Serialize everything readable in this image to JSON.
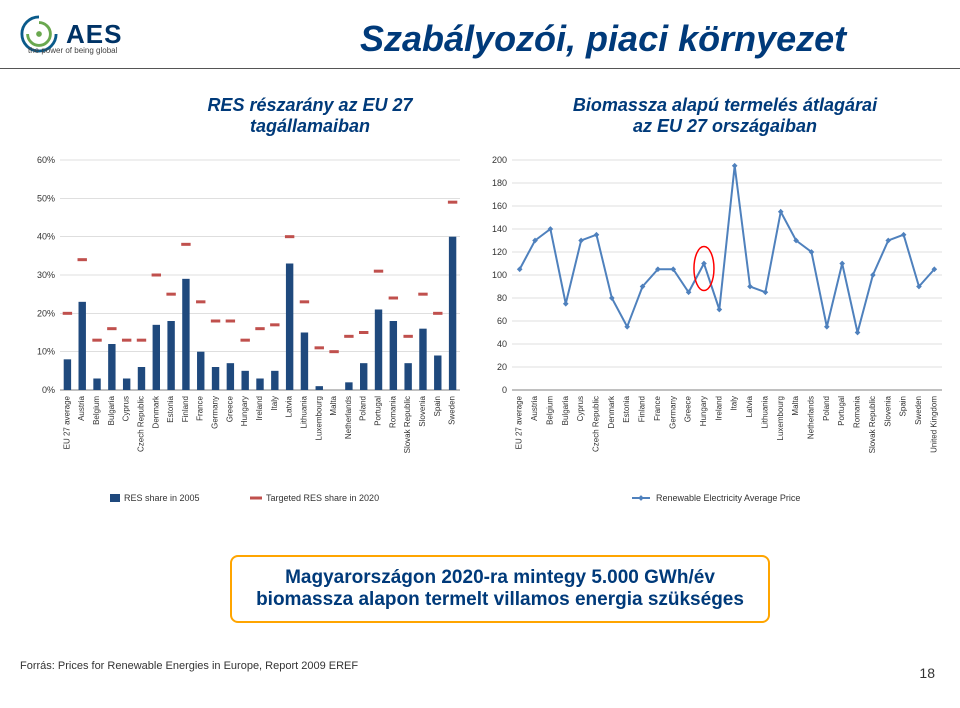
{
  "page": {
    "title": "Szabályozói, piaci környezet",
    "subtitle_left": "RES részarány az EU 27 tagállamaiban",
    "subtitle_right": "Biomassza alapú termelés átlagárai az EU 27 országaiban",
    "bottom_text": "Magyarországon 2020-ra mintegy 5.000 GWh/év biomassza alapon termelt villamos energia szükséges",
    "source": "Forrás: Prices for Renewable Energies in Europe, Report 2009  EREF",
    "page_num": "18",
    "logo_text": "AES",
    "logo_tagline": "the power of being global"
  },
  "chart_left": {
    "type": "bar",
    "categories": [
      "EU 27 average",
      "Austria",
      "Belgium",
      "Bulgaria",
      "Cyprus",
      "Czech Republic",
      "Denmark",
      "Estonia",
      "Finland",
      "France",
      "Germany",
      "Greece",
      "Hungary",
      "Ireland",
      "Italy",
      "Latvia",
      "Lithuania",
      "Luxembourg",
      "Malta",
      "Netherlands",
      "Poland",
      "Portugal",
      "Romania",
      "Slovak Republic",
      "Slovenia",
      "Spain",
      "Sweden"
    ],
    "series": [
      {
        "name": "RES share in 2005",
        "color": "#1f497d",
        "values": [
          8,
          23,
          3,
          12,
          3,
          6,
          17,
          18,
          29,
          10,
          6,
          7,
          5,
          3,
          5,
          33,
          15,
          1,
          0,
          2,
          7,
          21,
          18,
          7,
          16,
          9,
          40
        ]
      },
      {
        "name": "Targeted RES share in 2020",
        "color": "#c0504d",
        "values": [
          20,
          34,
          13,
          16,
          13,
          13,
          30,
          25,
          38,
          23,
          18,
          18,
          13,
          16,
          17,
          40,
          23,
          11,
          10,
          14,
          15,
          31,
          24,
          14,
          25,
          20,
          49
        ]
      }
    ],
    "yaxis": {
      "min": 0,
      "max": 60,
      "step": 10,
      "suffix": "%"
    },
    "label_fontsize": 8,
    "axis_fontsize": 9,
    "legend_fontsize": 9,
    "grid_color": "#bfbfbf",
    "axis_color": "#808080",
    "target_marker": "dash"
  },
  "chart_right": {
    "type": "line",
    "categories": [
      "EU 27 average",
      "Austria",
      "Belgium",
      "Bulgaria",
      "Cyprus",
      "Czech Republic",
      "Denmark",
      "Estonia",
      "Finland",
      "France",
      "Germany",
      "Greece",
      "Hungary",
      "Ireland",
      "Italy",
      "Latvia",
      "Lithuania",
      "Luxembourg",
      "Malta",
      "Netherlands",
      "Poland",
      "Portugal",
      "Romania",
      "Slovak Republic",
      "Slovenia",
      "Spain",
      "Sweden",
      "United Kingdom"
    ],
    "series": [
      {
        "name": "Renewable Electricity Average Price",
        "color": "#4f81bd",
        "values": [
          105,
          130,
          140,
          75,
          130,
          135,
          80,
          55,
          90,
          105,
          105,
          85,
          110,
          70,
          195,
          90,
          85,
          155,
          130,
          120,
          55,
          110,
          50,
          100,
          130,
          135,
          90,
          105
        ]
      }
    ],
    "yaxis": {
      "min": 0,
      "max": 200,
      "step": 20,
      "suffix": ""
    },
    "label_fontsize": 8,
    "axis_fontsize": 9,
    "legend_fontsize": 9,
    "grid_color": "#bfbfbf",
    "axis_color": "#808080",
    "marker_size": 4,
    "line_width": 2,
    "highlight_index": 12,
    "highlight_color": "#ff0000"
  },
  "colors": {
    "title_color": "#003a7a",
    "box_border": "#ffa500",
    "logo_text": "#003366",
    "logo_swirl_outer": "#0a5a8a",
    "logo_swirl_inner": "#6aa84f"
  }
}
